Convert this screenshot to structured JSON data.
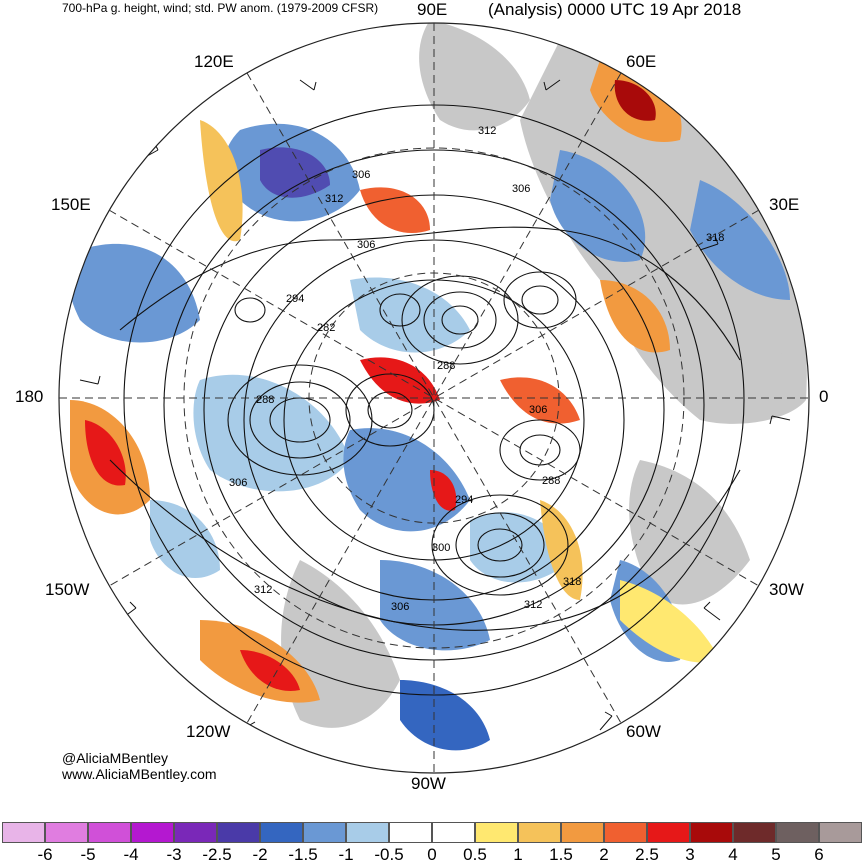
{
  "header": {
    "left_title": "700-hPa g. height, wind; std. PW anom. (1979-2009 CFSR)",
    "right_title": "(Analysis) 0000 UTC 19 Apr 2018"
  },
  "longitude_labels": {
    "lon_90e": "90E",
    "lon_60e": "60E",
    "lon_30e": "30E",
    "lon_0": "0",
    "lon_30w": "30W",
    "lon_60w": "60W",
    "lon_90w": "90W",
    "lon_120w": "120W",
    "lon_150w": "150W",
    "lon_180": "180",
    "lon_150e": "150E",
    "lon_120e": "120E"
  },
  "contour_labels": [
    "312",
    "306",
    "306",
    "312",
    "306",
    "294",
    "282",
    "288",
    "288",
    "306",
    "288",
    "306",
    "294",
    "300",
    "318",
    "312",
    "306",
    "312",
    "318"
  ],
  "credit": {
    "handle": "@AliciaMBentley",
    "website": "www.AliciaMBentley.com"
  },
  "colorbar": {
    "labels": [
      "-6",
      "-5",
      "-4",
      "-3",
      "-2.5",
      "-2",
      "-1.5",
      "-1",
      "-0.5",
      "0",
      "0.5",
      "1",
      "1.5",
      "2",
      "2.5",
      "3",
      "4",
      "5",
      "6"
    ],
    "colors": [
      "#e8b4e8",
      "#e07de0",
      "#d050d8",
      "#b418d0",
      "#7a28b8",
      "#4a3aa8",
      "#3466c0",
      "#6a98d4",
      "#a8cce8",
      "#ffffff",
      "#ffffff",
      "#ffe870",
      "#f5c25a",
      "#f29a40",
      "#f06030",
      "#e61818",
      "#a80a0a",
      "#6e2a2a",
      "#6e6060",
      "#a89a9a"
    ]
  }
}
